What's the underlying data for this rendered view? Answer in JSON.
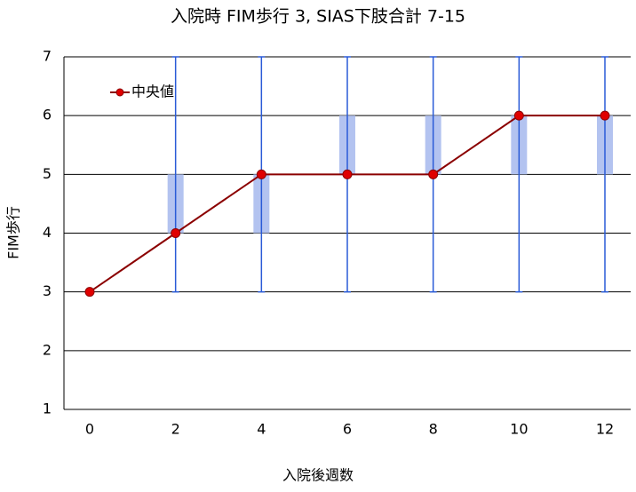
{
  "chart_data": {
    "type": "line",
    "title": "入院時 FIM歩行 3, SIAS下肢合計 7-15",
    "xlabel": "入院後週数",
    "ylabel": "FIM歩行",
    "x": [
      0,
      2,
      4,
      6,
      8,
      10,
      12
    ],
    "series": [
      {
        "name": "中央値",
        "color": "#8b0000",
        "marker_color": "#e00000",
        "values": [
          3,
          4,
          5,
          5,
          5,
          6,
          6
        ]
      }
    ],
    "box": {
      "color": "#b3c3f0",
      "q1": [
        3,
        4,
        4,
        5,
        5,
        5,
        5
      ],
      "q3": [
        3,
        5,
        5,
        6,
        6,
        6,
        6
      ]
    },
    "whisker": {
      "color": "#2a5bd7",
      "min": [
        3,
        3,
        3,
        3,
        3,
        3,
        3
      ],
      "max": [
        3,
        7,
        7,
        7,
        7,
        7,
        7
      ]
    },
    "xlim": [
      -0.6,
      12.6
    ],
    "ylim": [
      1,
      7
    ],
    "xticks": [
      0,
      2,
      4,
      6,
      8,
      10,
      12
    ],
    "yticks": [
      1,
      2,
      3,
      4,
      5,
      6,
      7
    ],
    "grid": true
  }
}
